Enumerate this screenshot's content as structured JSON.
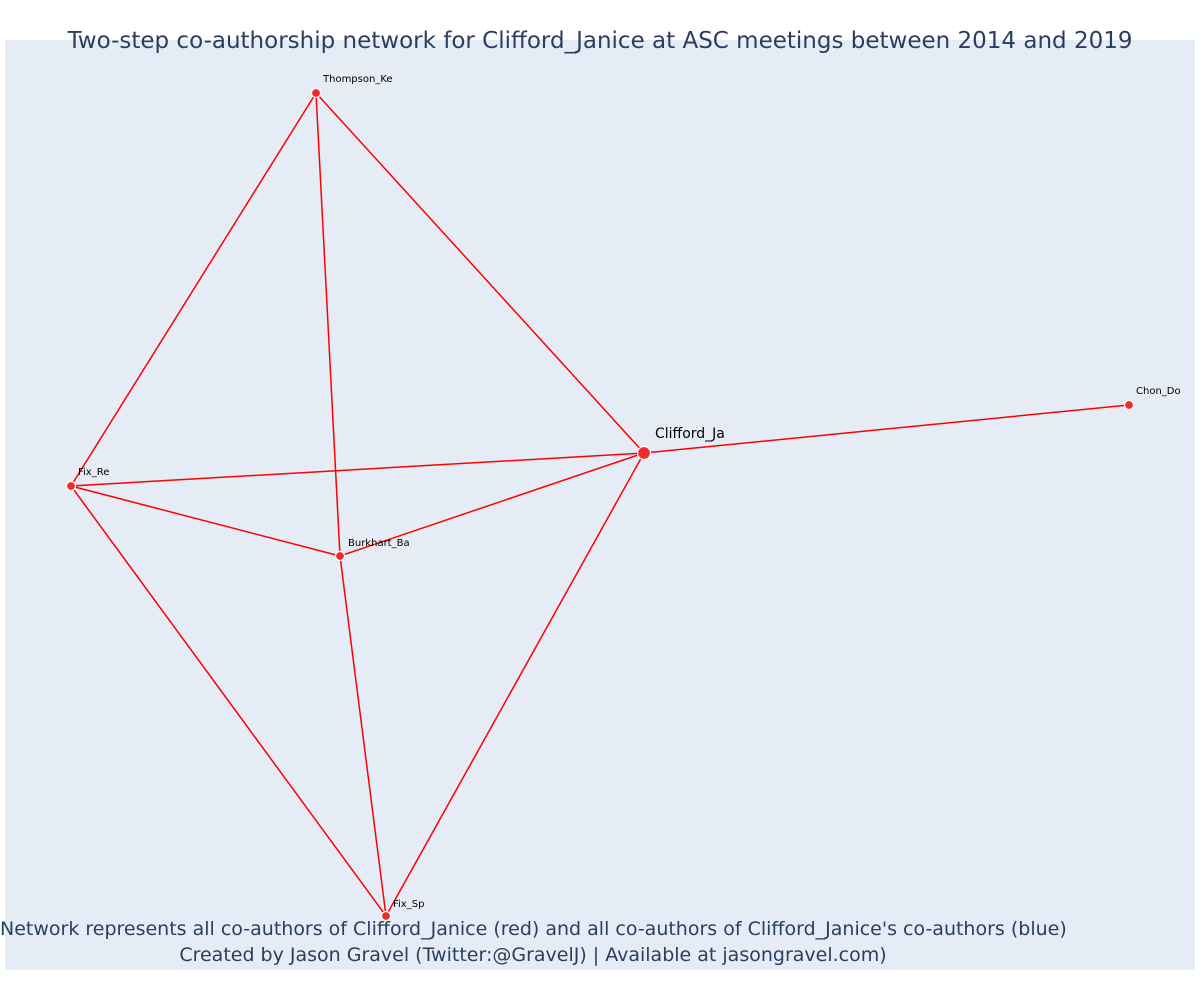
{
  "title": "Two-step co-authorship network for Clifford_Janice at ASC meetings between 2014 and 2019",
  "caption": {
    "line1": "Network represents all co-authors of Clifford_Janice (red) and all co-authors of Clifford_Janice's co-authors (blue)",
    "line2": "Created by Jason Gravel (Twitter:@GravelJ) | Available at jasongravel.com)"
  },
  "colors": {
    "background": "#e5ecf6",
    "edge": "#ff0000",
    "node": "#ef2b2b",
    "text": "#2a3f5f"
  },
  "network": {
    "nodes": [
      {
        "id": "Clifford_Ja",
        "label": "Clifford_Ja",
        "role": "focal"
      },
      {
        "id": "Thompson_Ke",
        "label": "Thompson_Ke",
        "role": "co-author"
      },
      {
        "id": "Fix_Re",
        "label": "Fix_Re",
        "role": "co-author"
      },
      {
        "id": "Burkhart_Ba",
        "label": "Burkhart_Ba",
        "role": "co-author"
      },
      {
        "id": "Fix_Sp",
        "label": "Fix_Sp",
        "role": "co-author"
      },
      {
        "id": "Chon_Do",
        "label": "Chon_Do",
        "role": "co-author"
      }
    ],
    "edges": [
      [
        "Thompson_Ke",
        "Fix_Re"
      ],
      [
        "Thompson_Ke",
        "Burkhart_Ba"
      ],
      [
        "Thompson_Ke",
        "Clifford_Ja"
      ],
      [
        "Fix_Re",
        "Clifford_Ja"
      ],
      [
        "Fix_Re",
        "Burkhart_Ba"
      ],
      [
        "Fix_Re",
        "Fix_Sp"
      ],
      [
        "Burkhart_Ba",
        "Clifford_Ja"
      ],
      [
        "Burkhart_Ba",
        "Fix_Sp"
      ],
      [
        "Fix_Sp",
        "Clifford_Ja"
      ],
      [
        "Clifford_Ja",
        "Chon_Do"
      ]
    ]
  }
}
